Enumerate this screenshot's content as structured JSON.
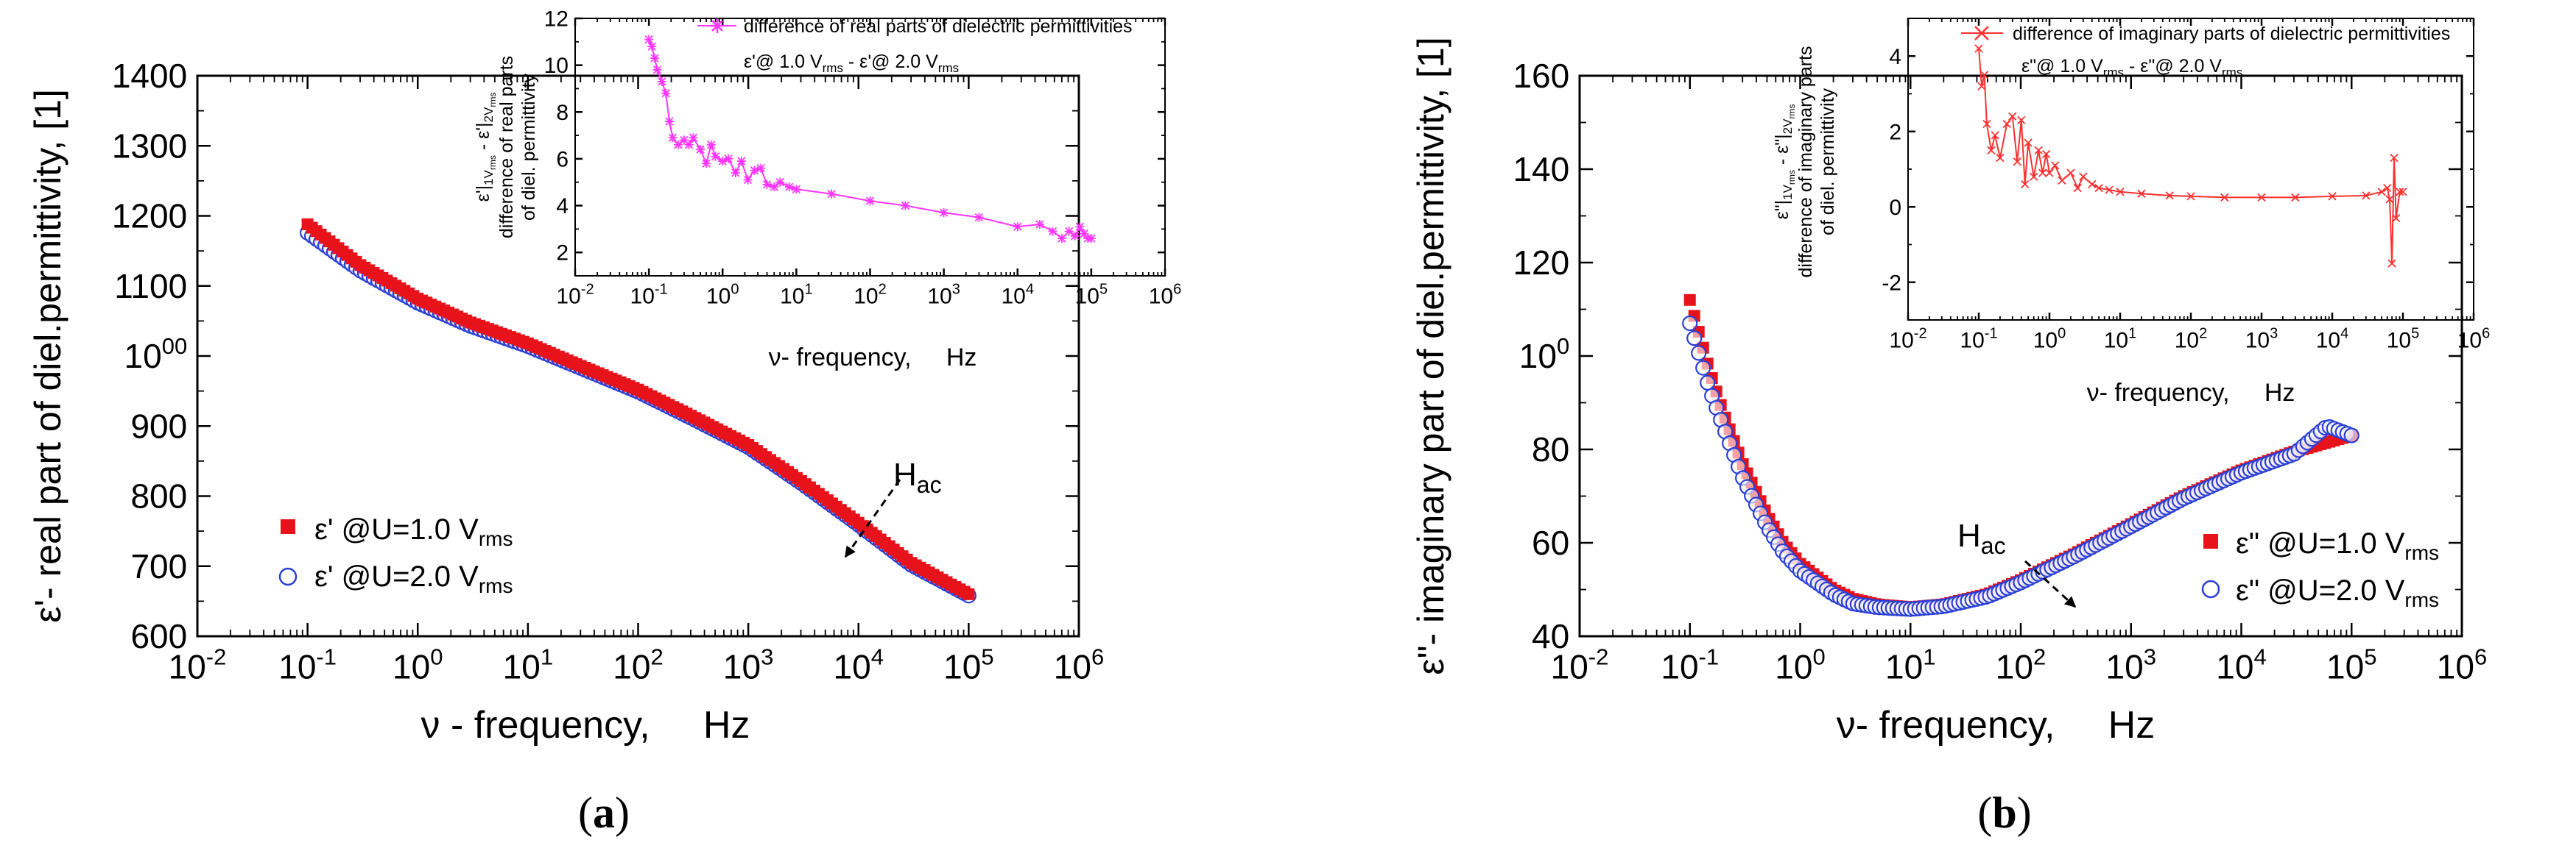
{
  "panels": [
    {
      "label_text": "a"
    },
    {
      "label_text": "b"
    }
  ],
  "colors": {
    "series_1v": "#e8131a",
    "series_2v": "#2a3fd4",
    "inset_a": "#ff35ff",
    "inset_b": "#ff3030"
  },
  "chart_data": [
    {
      "type": "scatter",
      "panel": "a",
      "title": "",
      "xlabel": "ν - frequency,     Hz",
      "ylabel": "ε'- real part of diel.permittivity, [1]",
      "xscale": "log",
      "xlim": [
        0.01,
        1000000
      ],
      "ylim": [
        600,
        1400
      ],
      "x_tick_labels": [
        "10-2",
        "10-1",
        "100",
        "101",
        "102",
        "103",
        "104",
        "105",
        "106"
      ],
      "y_tick_labels": [
        "600",
        "700",
        "800",
        "900",
        "1000",
        "1100",
        "1200",
        "1300",
        "1400"
      ],
      "series": [
        {
          "name": "ε' @U=1.0 Vrms",
          "marker": "filled-square",
          "color": "#e8131a",
          "x": [
            0.1,
            0.3,
            1,
            3,
            10,
            30,
            100,
            300,
            1000,
            3000,
            10000,
            30000,
            100000
          ],
          "y": [
            1188,
            1130,
            1082,
            1048,
            1018,
            986,
            952,
            915,
            873,
            822,
            762,
            705,
            660
          ]
        },
        {
          "name": "ε' @U=2.0 Vrms",
          "marker": "open-circle",
          "color": "#2a3fd4",
          "x": [
            0.1,
            0.3,
            1,
            3,
            10,
            30,
            100,
            300,
            1000,
            3000,
            10000,
            30000,
            100000
          ],
          "y": [
            1176,
            1122,
            1076,
            1043,
            1014,
            983,
            949,
            912,
            870,
            819,
            759,
            702,
            658
          ]
        }
      ],
      "annotation": {
        "main": "H",
        "sub": "ac"
      },
      "legend": [
        {
          "main": "ε' @U=1.0 V",
          "sub": "rms"
        },
        {
          "main": "ε' @U=2.0 V",
          "sub": "rms"
        }
      ],
      "legend_position": "lower-left",
      "inset": {
        "type": "line",
        "xlabel": "ν- frequency,     Hz",
        "ylabel_1": "difference of real parts",
        "ylabel_2": "of diel. permittivity",
        "ylabel_top": {
          "p1": "ε'|",
          "s1": "1V",
          "s1b": "rms",
          "p2": " - ε'|",
          "s2": "2V",
          "s2b": "rms"
        },
        "legend_line1": "difference of real parts of dielectric permittivities",
        "legend_line2": {
          "a": "ε'@ 1.0 V",
          "a_sub": "rms",
          "b": " - ε'@ 2.0 V",
          "b_sub": "rms"
        },
        "xscale": "log",
        "xlim": [
          0.01,
          1000000
        ],
        "ylim": [
          1,
          12
        ],
        "x_tick_labels": [
          "10-2",
          "10-1",
          "100",
          "101",
          "102",
          "103",
          "104",
          "105",
          "106"
        ],
        "y_tick_labels": [
          "2",
          "4",
          "6",
          "8",
          "10",
          "12"
        ],
        "series": [
          {
            "name": "difference of real parts of dielectric permittivities",
            "x": [
              0.1,
              0.11,
              0.12,
              0.13,
              0.15,
              0.17,
              0.19,
              0.21,
              0.25,
              0.3,
              0.35,
              0.4,
              0.5,
              0.6,
              0.7,
              0.8,
              1,
              1.2,
              1.5,
              1.8,
              2.2,
              2.7,
              3.3,
              4,
              5,
              6,
              8,
              10,
              30,
              100,
              300,
              1000,
              3000,
              10000,
              20000,
              30000,
              40000,
              50000,
              60000,
              70000,
              80000,
              90000,
              100000
            ],
            "y": [
              11.1,
              10.8,
              10.3,
              9.8,
              9.3,
              8.8,
              7.6,
              6.9,
              6.6,
              6.8,
              6.6,
              6.9,
              6.4,
              5.8,
              6.6,
              6.1,
              5.9,
              6.0,
              5.4,
              5.9,
              5.1,
              5.5,
              5.6,
              4.9,
              4.8,
              5.0,
              4.8,
              4.7,
              4.5,
              4.2,
              4.0,
              3.7,
              3.5,
              3.1,
              3.2,
              2.9,
              2.6,
              2.9,
              2.7,
              3.1,
              2.8,
              2.6,
              2.6
            ]
          }
        ]
      }
    },
    {
      "type": "scatter",
      "panel": "b",
      "title": "",
      "xlabel": "ν- frequency,     Hz",
      "ylabel": "ε\"- imaginary part of diel.permittivity, [1]",
      "xscale": "log",
      "xlim": [
        0.01,
        1000000
      ],
      "ylim": [
        40,
        160
      ],
      "x_tick_labels": [
        "10-2",
        "10-1",
        "100",
        "101",
        "102",
        "103",
        "104",
        "105",
        "106"
      ],
      "y_tick_labels": [
        "40",
        "60",
        "80",
        "100",
        "120",
        "140",
        "160"
      ],
      "series": [
        {
          "name": "ε\" @U=1.0 Vrms",
          "marker": "filled-square",
          "color": "#e8131a",
          "x": [
            0.1,
            0.15,
            0.2,
            0.3,
            0.5,
            0.7,
            1,
            2,
            3,
            5,
            10,
            20,
            50,
            100,
            300,
            1000,
            3000,
            10000,
            30000,
            60000,
            100000
          ],
          "y": [
            112,
            97,
            88,
            77,
            66,
            60,
            55.5,
            50,
            48,
            46.8,
            46.2,
            46.8,
            49,
            52,
            57.5,
            64,
            70,
            75.5,
            79.5,
            81.5,
            83
          ]
        },
        {
          "name": "ε\" @U=2.0 Vrms",
          "marker": "open-circle",
          "color": "#2a3fd4",
          "x": [
            0.1,
            0.15,
            0.2,
            0.3,
            0.5,
            0.7,
            1,
            2,
            3,
            5,
            10,
            20,
            50,
            100,
            300,
            1000,
            3000,
            10000,
            30000,
            60000,
            100000
          ],
          "y": [
            107,
            93,
            85,
            74,
            63.5,
            58,
            54,
            49,
            47,
            46.2,
            45.8,
            46.4,
            48.5,
            51.5,
            57,
            63.5,
            69.5,
            75,
            79,
            85,
            83
          ]
        }
      ],
      "annotation": {
        "main": "H",
        "sub": "ac"
      },
      "legend": [
        {
          "main": "ε\" @U=1.0 V",
          "sub": "rms"
        },
        {
          "main": "ε\" @U=2.0 V",
          "sub": "rms"
        }
      ],
      "legend_position": "lower-right",
      "inset": {
        "type": "line",
        "xlabel": "ν- frequency,     Hz",
        "ylabel_1": "difference of imaginary parts",
        "ylabel_2": "of diel. permittivity",
        "ylabel_top": {
          "p1": "ε\"|",
          "s1": "1V",
          "s1b": "rms",
          "p2": " - ε\"|",
          "s2": "2V",
          "s2b": "rms"
        },
        "legend_line1": "difference of imaginary parts of dielectric permittivities",
        "legend_line2": {
          "a": "ε\"@ 1.0 V",
          "a_sub": "rms",
          "b": " - ε\"@ 2.0 V",
          "b_sub": "rms"
        },
        "xscale": "log",
        "xlim": [
          0.01,
          1000000
        ],
        "ylim": [
          -3,
          5
        ],
        "x_tick_labels": [
          "10-2",
          "10-1",
          "100",
          "101",
          "102",
          "103",
          "104",
          "105",
          "106"
        ],
        "y_tick_labels": [
          "-2",
          "0",
          "2",
          "4"
        ],
        "series": [
          {
            "name": "difference of imaginary parts of dielectric permittivities",
            "x": [
              0.1,
              0.11,
              0.12,
              0.13,
              0.15,
              0.17,
              0.2,
              0.25,
              0.3,
              0.35,
              0.4,
              0.45,
              0.5,
              0.6,
              0.7,
              0.8,
              0.9,
              1,
              1.2,
              1.5,
              2,
              2.5,
              3,
              4,
              5,
              7,
              10,
              20,
              50,
              100,
              300,
              1000,
              3000,
              10000,
              30000,
              50000,
              60000,
              65000,
              70000,
              75000,
              80000,
              90000,
              100000
            ],
            "y": [
              4.2,
              3.2,
              3.5,
              2.2,
              1.5,
              1.9,
              1.3,
              2.2,
              2.4,
              1.2,
              2.3,
              0.6,
              1.7,
              0.8,
              1.5,
              0.9,
              1.4,
              0.9,
              1.1,
              0.7,
              0.9,
              0.5,
              0.8,
              0.6,
              0.5,
              0.45,
              0.4,
              0.35,
              0.3,
              0.28,
              0.25,
              0.25,
              0.25,
              0.28,
              0.3,
              0.4,
              0.5,
              0.2,
              -1.5,
              1.3,
              -0.3,
              0.4,
              0.4
            ]
          }
        ]
      }
    }
  ]
}
